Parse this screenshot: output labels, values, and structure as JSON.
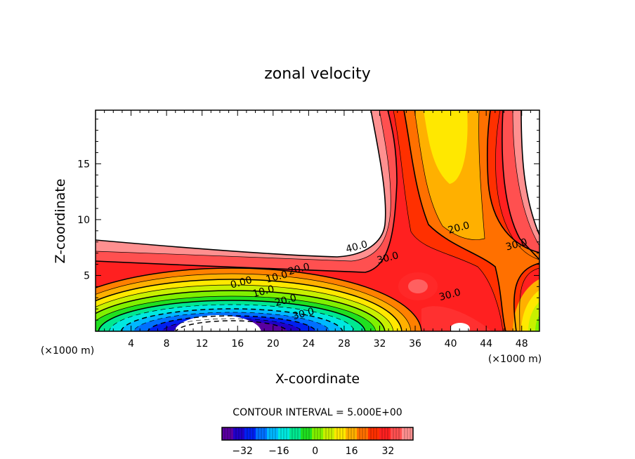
{
  "chart_data": {
    "type": "heatmap",
    "subtype": "filled-contour",
    "title": "zonal velocity",
    "xlabel": "X-coordinate",
    "ylabel": "Z-coordinate",
    "x_unit_left": "(×1000 m)",
    "x_unit_right": "(×1000 m)",
    "xlim": [
      0,
      50
    ],
    "ylim": [
      0,
      19.8
    ],
    "xticks": [
      4,
      8,
      12,
      16,
      20,
      24,
      28,
      32,
      36,
      40,
      44,
      48
    ],
    "xtick_labels": [
      "4",
      "8",
      "12",
      "16",
      "20",
      "24",
      "28",
      "32",
      "36",
      "40",
      "44",
      "48"
    ],
    "yticks": [
      5,
      10,
      15
    ],
    "ytick_labels": [
      "5",
      "10",
      "15"
    ],
    "contour_interval_text": "CONTOUR INTERVAL = 5.000E+00",
    "contour_interval": 5,
    "contour_levels": [
      -40,
      -35,
      -30,
      -25,
      -20,
      -15,
      -10,
      -5,
      0,
      5,
      10,
      15,
      20,
      25,
      30,
      35,
      40
    ],
    "value_range_estimate": [
      -42,
      43
    ],
    "contour_labels": [
      {
        "text": "40.0",
        "x": 29.5,
        "z": 7.3
      },
      {
        "text": "30.0",
        "x": 33.0,
        "z": 6.3
      },
      {
        "text": "20.0",
        "x": 41.0,
        "z": 9.0
      },
      {
        "text": "30.0",
        "x": 47.5,
        "z": 7.5
      },
      {
        "text": "20.0",
        "x": 23.0,
        "z": 5.3
      },
      {
        "text": "10.0",
        "x": 20.5,
        "z": 4.6
      },
      {
        "text": "0.00",
        "x": 16.5,
        "z": 4.1
      },
      {
        "text": "10.0",
        "x": 19.0,
        "z": 3.3
      },
      {
        "text": "20.0",
        "x": 21.5,
        "z": 2.5
      },
      {
        "text": "30.0",
        "x": 23.5,
        "z": 1.3
      },
      {
        "text": "30.0",
        "x": 40.0,
        "z": 3.0
      }
    ],
    "features": "Negative jet (min about -40) centered near x=16-20, z=0-2; strong positive values (30-43) in a layer at z≈5-7 and a vertical column at x≈32-46 with weaker 15-25 core near x≈38-42",
    "colorbar": {
      "range": [
        -41,
        43
      ],
      "ticks": [
        -32,
        -16,
        0,
        16,
        32
      ],
      "tick_labels": [
        "−32",
        "−16",
        "0",
        "16",
        "32"
      ],
      "colors": [
        "#5a00a0",
        "#2000c8",
        "#0020f0",
        "#0070ff",
        "#00b8ff",
        "#00e8e0",
        "#00e890",
        "#20e020",
        "#80f000",
        "#c8f000",
        "#ffe800",
        "#ffb000",
        "#ff7000",
        "#ff3000",
        "#ff2020",
        "#ff5050",
        "#ff9090"
      ]
    }
  }
}
